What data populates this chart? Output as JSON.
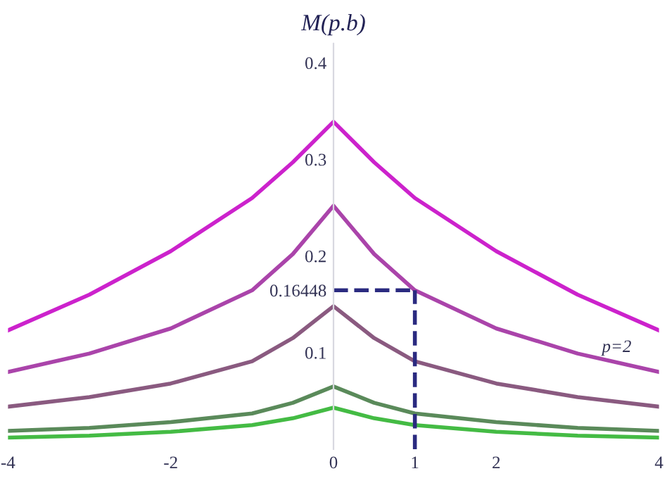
{
  "chart_data": {
    "type": "line",
    "ylabel": "M(p.b)",
    "x": [
      -4,
      -3,
      -2,
      -1,
      -0.5,
      0,
      0.5,
      1,
      2,
      3,
      4
    ],
    "series": [
      {
        "color": "#cc22cc",
        "values": [
          0.123,
          0.16,
          0.205,
          0.26,
          0.297,
          0.339,
          0.297,
          0.26,
          0.205,
          0.16,
          0.123
        ]
      },
      {
        "color": "#aa44aa",
        "values": [
          0.08,
          0.099,
          0.125,
          0.16448,
          0.202,
          0.252,
          0.202,
          0.16448,
          0.125,
          0.099,
          0.08
        ]
      },
      {
        "color": "#8a5a80",
        "values": [
          0.044,
          0.054,
          0.068,
          0.091,
          0.115,
          0.148,
          0.115,
          0.091,
          0.068,
          0.054,
          0.044
        ]
      },
      {
        "color": "#5a8a5a",
        "values": [
          0.019,
          0.022,
          0.028,
          0.037,
          0.048,
          0.065,
          0.048,
          0.037,
          0.028,
          0.022,
          0.019
        ]
      },
      {
        "color": "#44bb44",
        "values": [
          0.012,
          0.014,
          0.018,
          0.025,
          0.032,
          0.043,
          0.032,
          0.025,
          0.018,
          0.014,
          0.012
        ]
      }
    ],
    "xlim": [
      -4,
      4
    ],
    "ylim": [
      0,
      0.42
    ],
    "xticks": [
      -4,
      -2,
      0,
      1,
      2,
      4
    ],
    "yticks": [
      0.1,
      0.16448,
      0.2,
      0.3,
      0.4
    ],
    "ref_lines": [
      {
        "axis": "x",
        "value": 1,
        "color": "#2a2a80",
        "line_style": "dashed"
      },
      {
        "axis": "y",
        "value": 0.16448,
        "color": "#2a2a80",
        "line_style": "dashed"
      }
    ],
    "annotations": [
      "p=2"
    ],
    "grid": false,
    "legend": false
  }
}
